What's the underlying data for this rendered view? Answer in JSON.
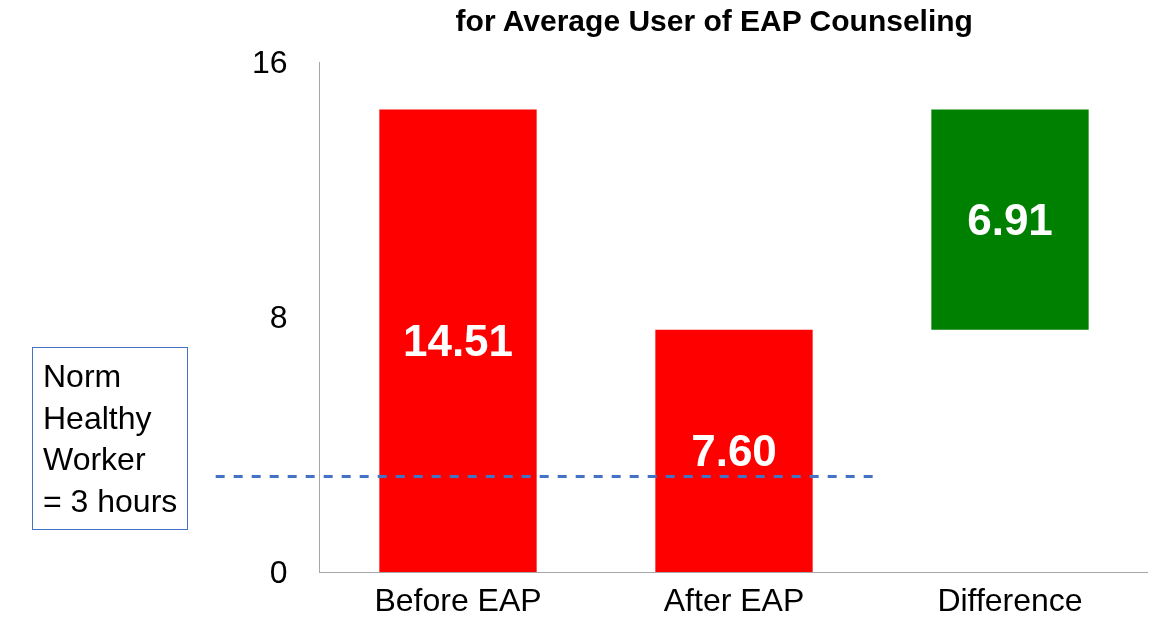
{
  "chart_data": {
    "type": "bar",
    "title": "for Average User of EAP Counseling",
    "categories": [
      "Before EAP",
      "After EAP",
      "Difference"
    ],
    "values": [
      14.51,
      7.6,
      6.91
    ],
    "base": [
      0,
      0,
      7.6
    ],
    "colors": [
      "#ff0000",
      "#ff0000",
      "#008000"
    ],
    "value_labels": [
      "14.51",
      "7.60",
      "6.91"
    ],
    "ylim": [
      0,
      16
    ],
    "yticks": [
      0,
      8,
      16
    ],
    "grid": false,
    "ref_lines": [
      {
        "axis": "y",
        "value": 3,
        "label": "Norm\nHealthy\nWorker\n= 3 hours",
        "color": "#4472c4",
        "line_style": "dashed"
      }
    ]
  }
}
